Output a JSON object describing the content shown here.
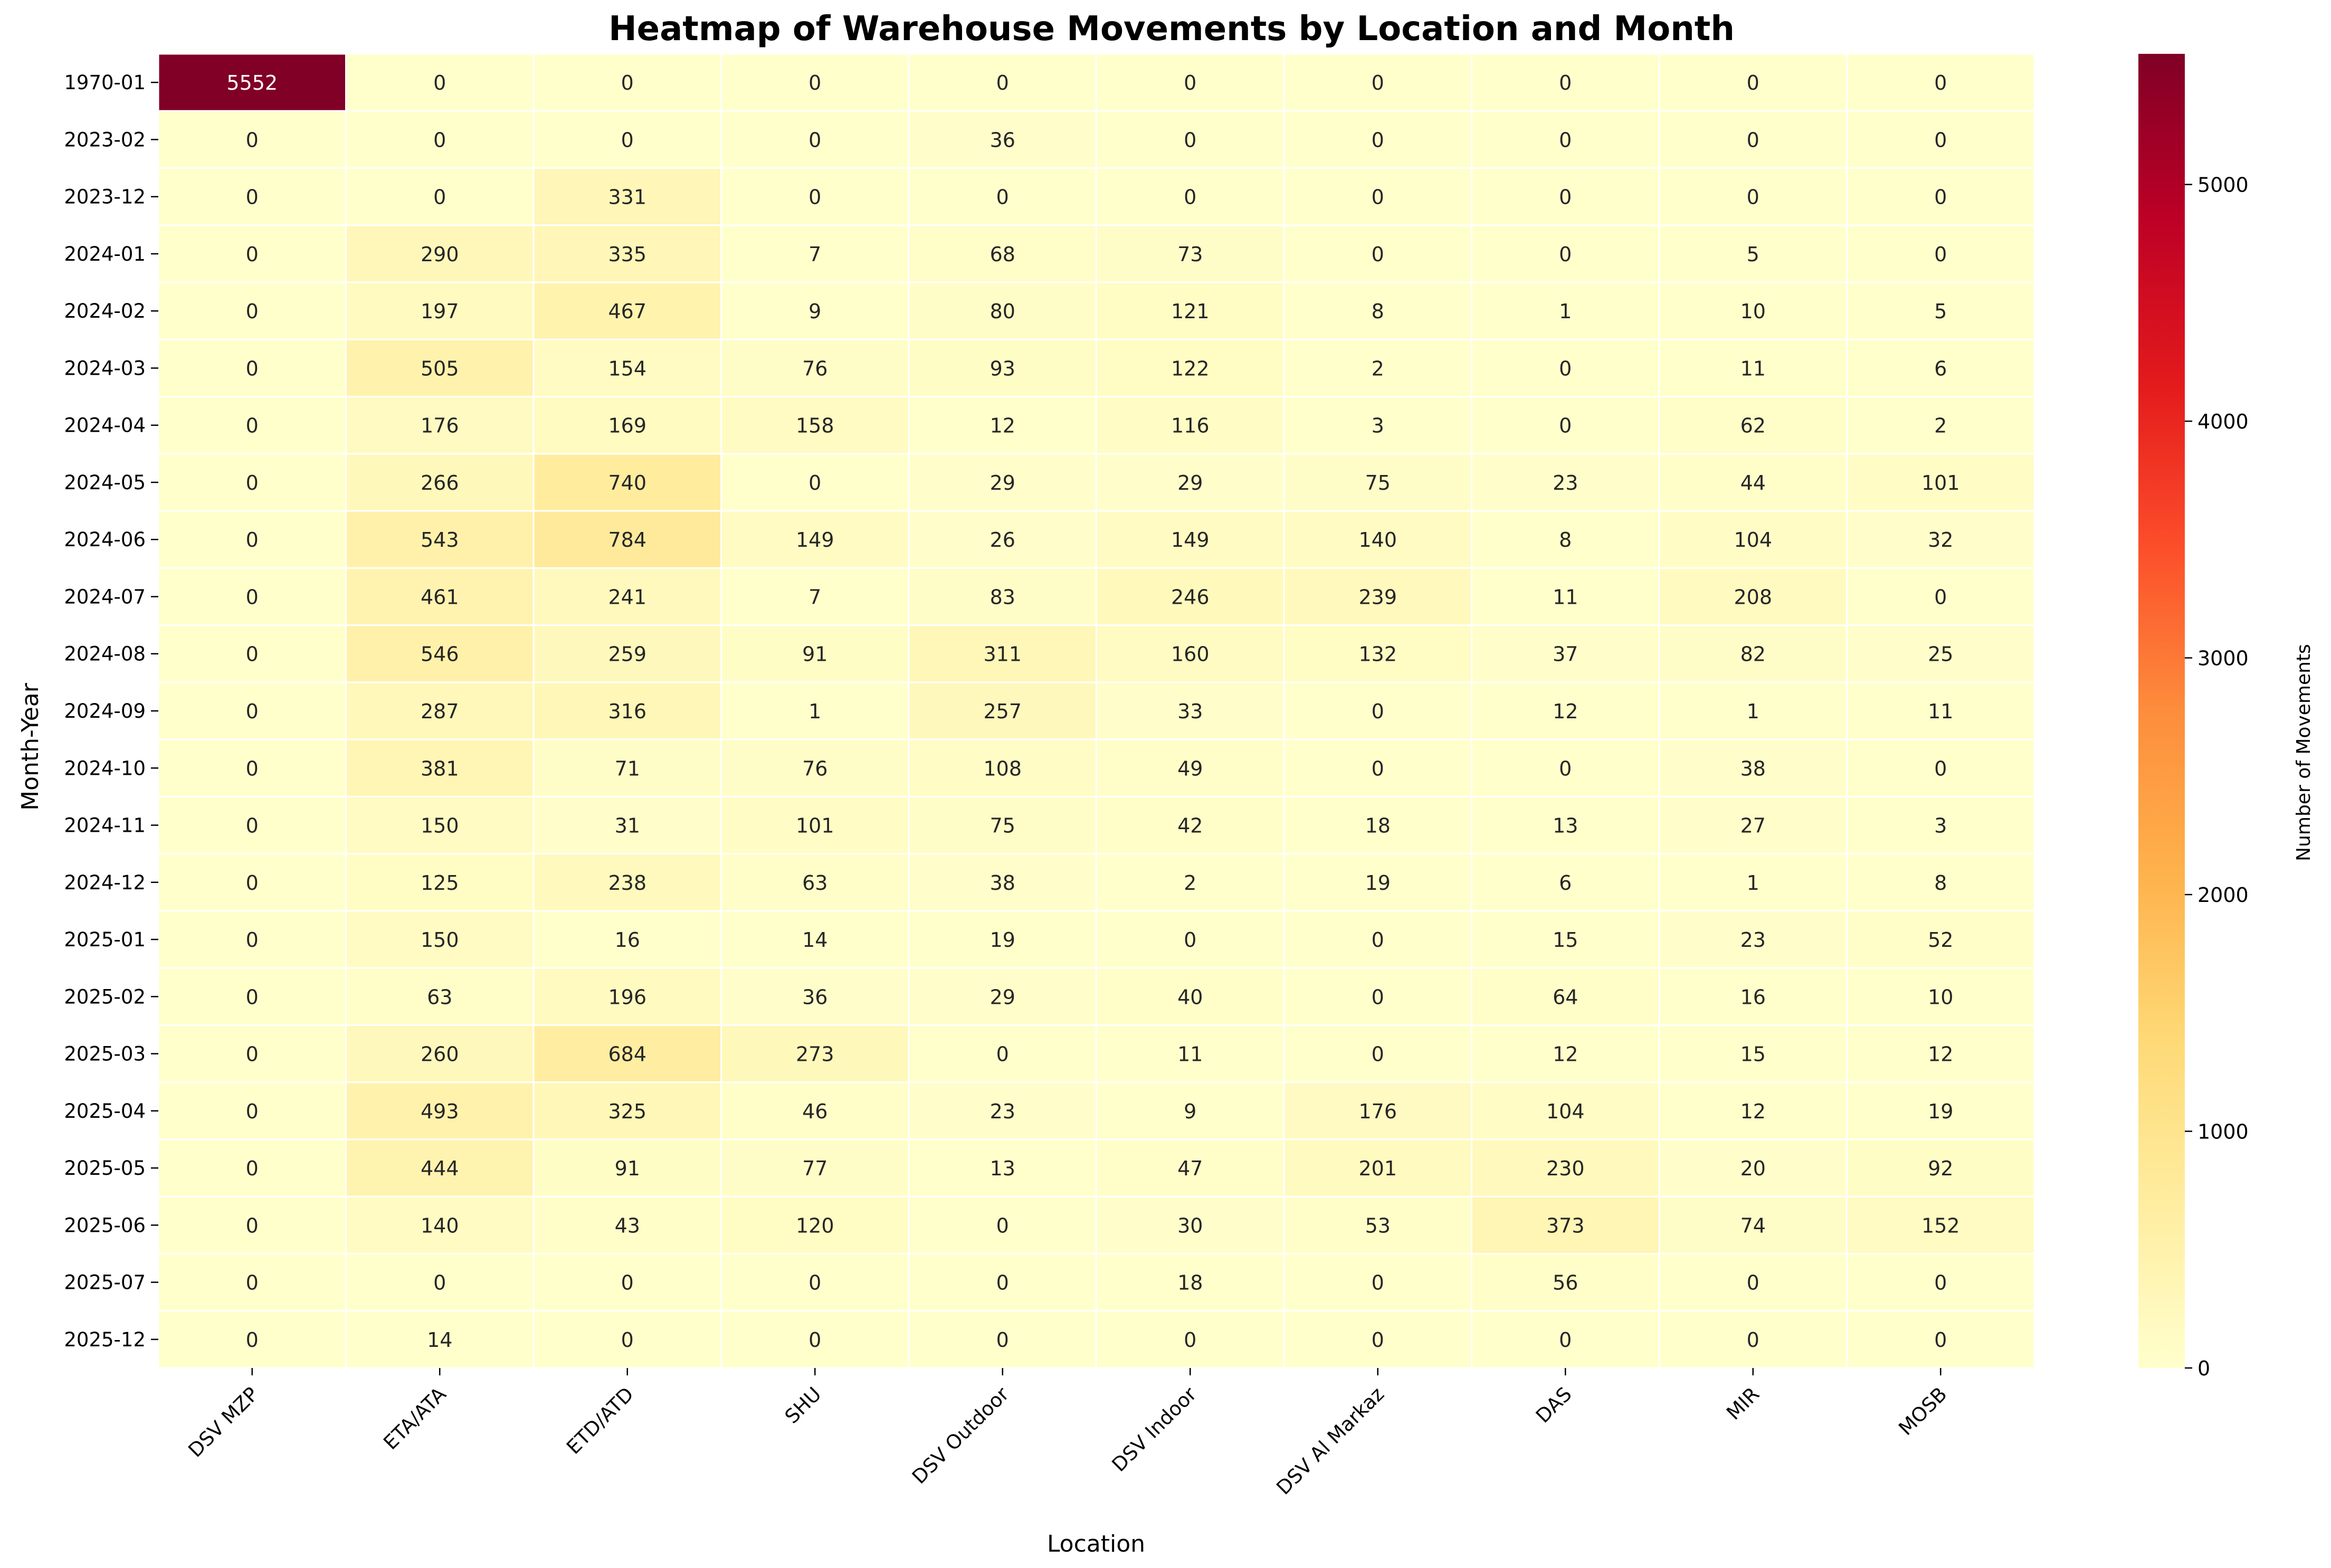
{
  "chart_data": {
    "type": "heatmap",
    "title": "Heatmap of Warehouse Movements by Location and Month",
    "xlabel": "Location",
    "ylabel": "Month-Year",
    "colorbar_label": "Number of Movements",
    "colorbar_ticks": [
      "0",
      "1000",
      "2000",
      "3000",
      "4000",
      "5000"
    ],
    "colorbar_range": [
      0,
      5552
    ],
    "colormap": "YlOrRd",
    "colormap_stops": [
      "#ffffcc",
      "#ffeda0",
      "#fed976",
      "#feb24c",
      "#fd8d3c",
      "#fc4e2a",
      "#e31a1c",
      "#bd0026",
      "#800026"
    ],
    "x_categories": [
      "DSV MZP",
      "ETA/ATA",
      "ETD/ATD",
      "SHU",
      "DSV Outdoor",
      "DSV Indoor",
      "DSV Al Markaz",
      "DAS",
      "MIR",
      "MOSB"
    ],
    "y_categories": [
      "1970-01",
      "2023-02",
      "2023-12",
      "2024-01",
      "2024-02",
      "2024-03",
      "2024-04",
      "2024-05",
      "2024-06",
      "2024-07",
      "2024-08",
      "2024-09",
      "2024-10",
      "2024-11",
      "2024-12",
      "2025-01",
      "2025-02",
      "2025-03",
      "2025-04",
      "2025-05",
      "2025-06",
      "2025-07",
      "2025-12"
    ],
    "values": [
      [
        5552,
        0,
        0,
        0,
        0,
        0,
        0,
        0,
        0,
        0
      ],
      [
        0,
        0,
        0,
        0,
        36,
        0,
        0,
        0,
        0,
        0
      ],
      [
        0,
        0,
        331,
        0,
        0,
        0,
        0,
        0,
        0,
        0
      ],
      [
        0,
        290,
        335,
        7,
        68,
        73,
        0,
        0,
        5,
        0
      ],
      [
        0,
        197,
        467,
        9,
        80,
        121,
        8,
        1,
        10,
        5
      ],
      [
        0,
        505,
        154,
        76,
        93,
        122,
        2,
        0,
        11,
        6
      ],
      [
        0,
        176,
        169,
        158,
        12,
        116,
        3,
        0,
        62,
        2
      ],
      [
        0,
        266,
        740,
        0,
        29,
        29,
        75,
        23,
        44,
        101
      ],
      [
        0,
        543,
        784,
        149,
        26,
        149,
        140,
        8,
        104,
        32
      ],
      [
        0,
        461,
        241,
        7,
        83,
        246,
        239,
        11,
        208,
        0
      ],
      [
        0,
        546,
        259,
        91,
        311,
        160,
        132,
        37,
        82,
        25
      ],
      [
        0,
        287,
        316,
        1,
        257,
        33,
        0,
        12,
        1,
        11
      ],
      [
        0,
        381,
        71,
        76,
        108,
        49,
        0,
        0,
        38,
        0
      ],
      [
        0,
        150,
        31,
        101,
        75,
        42,
        18,
        13,
        27,
        3
      ],
      [
        0,
        125,
        238,
        63,
        38,
        2,
        19,
        6,
        1,
        8
      ],
      [
        0,
        150,
        16,
        14,
        19,
        0,
        0,
        15,
        23,
        52
      ],
      [
        0,
        63,
        196,
        36,
        29,
        40,
        0,
        64,
        16,
        10
      ],
      [
        0,
        260,
        684,
        273,
        0,
        11,
        0,
        12,
        15,
        12
      ],
      [
        0,
        493,
        325,
        46,
        23,
        9,
        176,
        104,
        12,
        19
      ],
      [
        0,
        444,
        91,
        77,
        13,
        47,
        201,
        230,
        20,
        92
      ],
      [
        0,
        140,
        43,
        120,
        0,
        30,
        53,
        373,
        74,
        152
      ],
      [
        0,
        0,
        0,
        0,
        0,
        18,
        0,
        56,
        0,
        0
      ],
      [
        0,
        14,
        0,
        0,
        0,
        0,
        0,
        0,
        0,
        0
      ]
    ],
    "grid": false,
    "legend": "colorbar-right"
  }
}
